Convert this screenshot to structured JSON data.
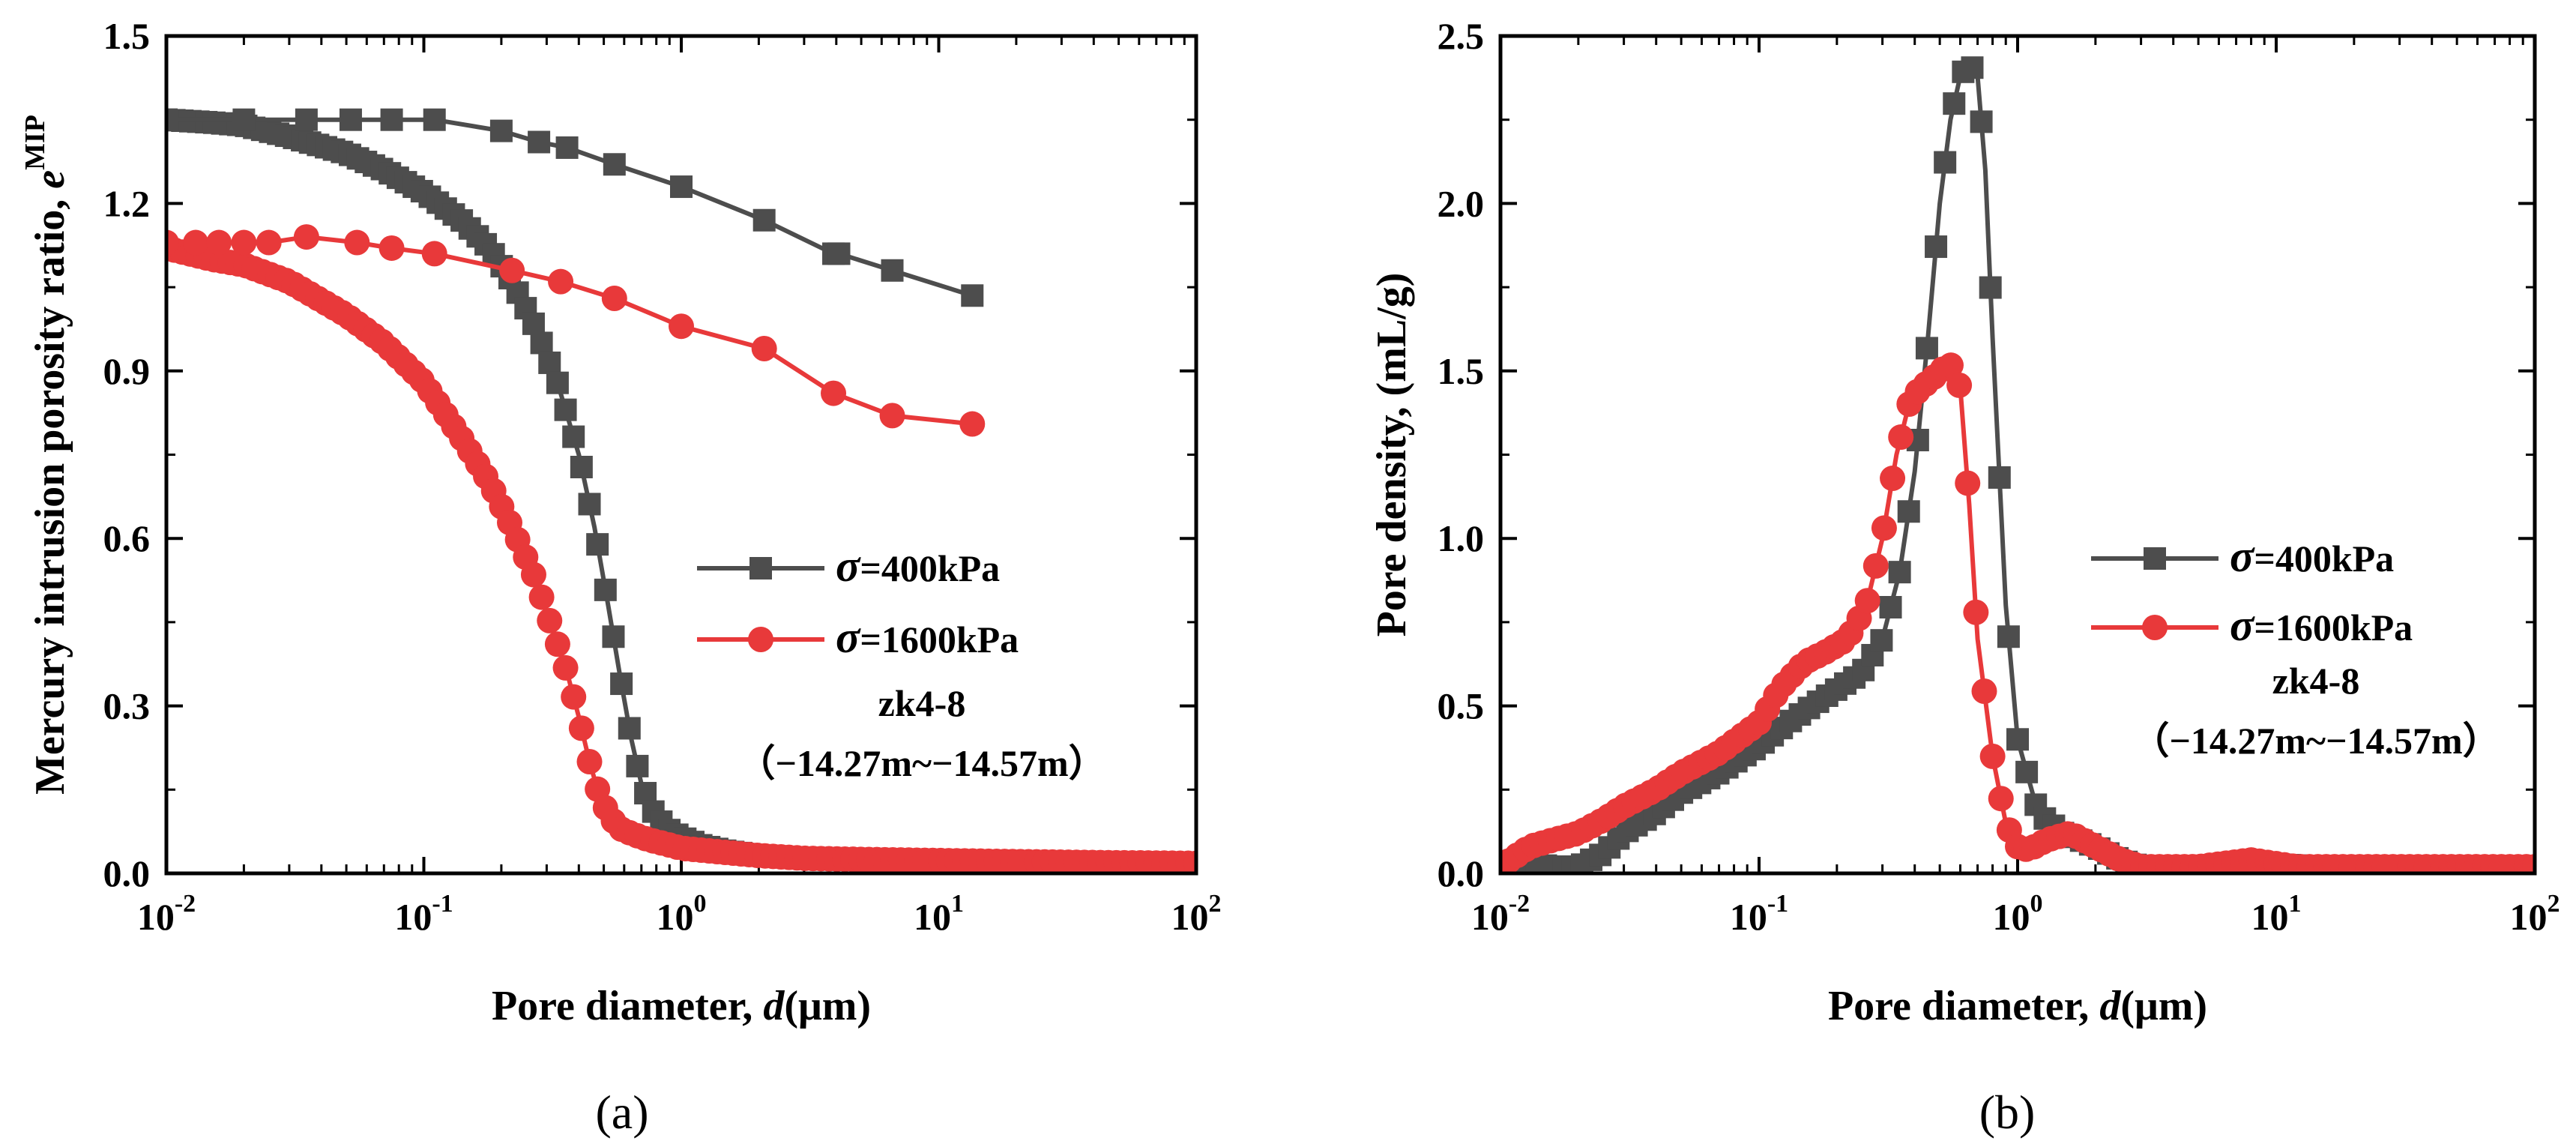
{
  "colors": {
    "s400": "#4d4d4d",
    "s1600": "#e8393a"
  },
  "chart_data": [
    {
      "id": "a",
      "type": "line",
      "panel_label": "(a)",
      "xscale": "log",
      "xlim": [
        0.01,
        100
      ],
      "ylim": [
        0,
        1.5
      ],
      "xticks": [
        {
          "v": 0.01,
          "b": "10",
          "e": "-2"
        },
        {
          "v": 0.1,
          "b": "10",
          "e": "-1"
        },
        {
          "v": 1,
          "b": "10",
          "e": "0"
        },
        {
          "v": 10,
          "b": "10",
          "e": "1"
        },
        {
          "v": 100,
          "b": "10",
          "e": "2"
        }
      ],
      "yticks": [
        {
          "v": 0,
          "t": "0.0"
        },
        {
          "v": 0.3,
          "t": "0.3"
        },
        {
          "v": 0.6,
          "t": "0.6"
        },
        {
          "v": 0.9,
          "t": "0.9"
        },
        {
          "v": 1.2,
          "t": "1.2"
        },
        {
          "v": 1.5,
          "t": "1.5"
        }
      ],
      "xlabel": {
        "pre": "Pore diameter, ",
        "sym": "d",
        "post": "(μm)"
      },
      "ylabel": {
        "pre": "Mercury intrusion porosity ratio, ",
        "sym": "e",
        "sup": "MIP"
      },
      "legend": [
        {
          "sym": "σ",
          "label": "=400kPa"
        },
        {
          "sym": "σ",
          "label": "=1600kPa"
        }
      ],
      "annotation": [
        "zk4-8",
        "（−14.27m~−14.57m）"
      ],
      "series": [
        {
          "name": "σ=400kPa",
          "marker": "square",
          "color_key": "s400",
          "x": [
            0.01,
            0.015,
            0.02,
            0.03,
            0.05,
            0.07,
            0.1,
            0.14,
            0.18,
            0.22,
            0.27,
            0.33,
            0.4,
            0.46,
            0.52,
            0.58,
            0.64,
            0.7,
            0.78,
            0.88,
            1.0,
            1.2,
            1.5,
            2.0,
            2.7,
            4.0,
            6.0,
            10,
            20,
            50,
            100
          ],
          "y": [
            1.35,
            1.345,
            1.34,
            1.32,
            1.29,
            1.26,
            1.22,
            1.17,
            1.12,
            1.06,
            0.98,
            0.88,
            0.75,
            0.62,
            0.48,
            0.35,
            0.24,
            0.16,
            0.11,
            0.08,
            0.065,
            0.05,
            0.04,
            0.032,
            0.028,
            0.025,
            0.024,
            0.022,
            0.02,
            0.018,
            0.016
          ],
          "n_markers": 130
        },
        {
          "name": "σ=1600kPa",
          "marker": "circle",
          "color_key": "s1600",
          "x": [
            0.01,
            0.015,
            0.02,
            0.03,
            0.05,
            0.07,
            0.1,
            0.14,
            0.18,
            0.22,
            0.27,
            0.32,
            0.36,
            0.4,
            0.44,
            0.48,
            0.53,
            0.58,
            0.65,
            0.75,
            0.88,
            1.0,
            1.3,
            2.0,
            3.0,
            5.0,
            10,
            20,
            50,
            100
          ],
          "y": [
            1.12,
            1.1,
            1.09,
            1.06,
            1.0,
            0.95,
            0.88,
            0.78,
            0.7,
            0.62,
            0.53,
            0.43,
            0.36,
            0.28,
            0.2,
            0.14,
            0.1,
            0.08,
            0.07,
            0.06,
            0.052,
            0.045,
            0.04,
            0.032,
            0.027,
            0.025,
            0.023,
            0.021,
            0.019,
            0.018
          ],
          "n_markers": 130
        },
        {
          "name": "σ=400kPa (upper)",
          "marker": "square",
          "color_key": "s400",
          "all_markers": true,
          "x": [
            0.01,
            0.02,
            0.035,
            0.052,
            0.075,
            0.11,
            0.2,
            0.28,
            0.36,
            0.55,
            1.0,
            2.1,
            3.9,
            4.1,
            6.6,
            13.5
          ],
          "y": [
            1.35,
            1.35,
            1.35,
            1.35,
            1.35,
            1.35,
            1.33,
            1.31,
            1.3,
            1.27,
            1.23,
            1.17,
            1.11,
            1.11,
            1.08,
            1.035
          ]
        },
        {
          "name": "σ=1600kPa (upper)",
          "marker": "circle",
          "color_key": "s1600",
          "all_markers": true,
          "x": [
            0.01,
            0.013,
            0.016,
            0.02,
            0.025,
            0.035,
            0.055,
            0.075,
            0.11,
            0.22,
            0.34,
            0.55,
            1.0,
            2.1,
            3.9,
            6.6,
            13.5
          ],
          "y": [
            1.13,
            1.13,
            1.13,
            1.13,
            1.13,
            1.14,
            1.13,
            1.12,
            1.11,
            1.08,
            1.06,
            1.03,
            0.98,
            0.94,
            0.86,
            0.82,
            0.805
          ]
        }
      ]
    },
    {
      "id": "b",
      "type": "line",
      "panel_label": "(b)",
      "xscale": "log",
      "xlim": [
        0.01,
        100
      ],
      "ylim": [
        0,
        2.5
      ],
      "xticks": [
        {
          "v": 0.01,
          "b": "10",
          "e": "-2"
        },
        {
          "v": 0.1,
          "b": "10",
          "e": "-1"
        },
        {
          "v": 1,
          "b": "10",
          "e": "0"
        },
        {
          "v": 10,
          "b": "10",
          "e": "1"
        },
        {
          "v": 100,
          "b": "10",
          "e": "2"
        }
      ],
      "yticks": [
        {
          "v": 0,
          "t": "0.0"
        },
        {
          "v": 0.5,
          "t": "0.5"
        },
        {
          "v": 1.0,
          "t": "1.0"
        },
        {
          "v": 1.5,
          "t": "1.5"
        },
        {
          "v": 2.0,
          "t": "2.0"
        },
        {
          "v": 2.5,
          "t": "2.5"
        }
      ],
      "xlabel": {
        "pre": "Pore diameter, ",
        "sym": "d",
        "post": "(μm)"
      },
      "ylabel": {
        "pre": "Pore density, (mL/g)"
      },
      "legend": [
        {
          "sym": "σ",
          "label": "=400kPa"
        },
        {
          "sym": "σ",
          "label": "=1600kPa"
        }
      ],
      "annotation": [
        "zk4-8",
        "（−14.27m~−14.57m）"
      ],
      "series": [
        {
          "name": "σ=400kPa",
          "marker": "square",
          "color_key": "s400",
          "x": [
            0.01,
            0.013,
            0.016,
            0.02,
            0.025,
            0.03,
            0.04,
            0.05,
            0.07,
            0.1,
            0.13,
            0.16,
            0.2,
            0.25,
            0.3,
            0.35,
            0.4,
            0.45,
            0.5,
            0.55,
            0.6,
            0.65,
            0.7,
            0.75,
            0.8,
            0.9,
            1.0,
            1.2,
            1.5,
            2.0,
            2.5,
            3.0,
            5.0,
            8.0,
            15,
            30,
            60,
            100
          ],
          "y": [
            0.02,
            0.03,
            0.02,
            0.02,
            0.06,
            0.12,
            0.18,
            0.24,
            0.3,
            0.38,
            0.45,
            0.5,
            0.55,
            0.6,
            0.7,
            0.9,
            1.2,
            1.6,
            2.0,
            2.25,
            2.38,
            2.42,
            2.38,
            2.1,
            1.6,
            0.8,
            0.4,
            0.18,
            0.12,
            0.08,
            0.04,
            0.02,
            0.02,
            0.03,
            0.02,
            0.02,
            0.02,
            0.02
          ],
          "n_markers": 115
        },
        {
          "name": "σ=1600kPa",
          "marker": "circle",
          "color_key": "s1600",
          "x": [
            0.01,
            0.013,
            0.016,
            0.02,
            0.025,
            0.03,
            0.04,
            0.05,
            0.07,
            0.1,
            0.12,
            0.15,
            0.18,
            0.22,
            0.26,
            0.3,
            0.34,
            0.38,
            0.42,
            0.46,
            0.5,
            0.55,
            0.6,
            0.65,
            0.7,
            0.8,
            0.9,
            1.0,
            1.1,
            1.3,
            1.6,
            2.0,
            2.5,
            3.0,
            5.0,
            8.0,
            12,
            30,
            100
          ],
          "y": [
            0.02,
            0.08,
            0.1,
            0.12,
            0.16,
            0.2,
            0.25,
            0.3,
            0.36,
            0.45,
            0.55,
            0.63,
            0.66,
            0.7,
            0.8,
            1.0,
            1.25,
            1.4,
            1.45,
            1.47,
            1.5,
            1.52,
            1.45,
            1.1,
            0.7,
            0.35,
            0.15,
            0.08,
            0.07,
            0.1,
            0.12,
            0.08,
            0.04,
            0.02,
            0.02,
            0.04,
            0.02,
            0.02,
            0.02
          ],
          "n_markers": 125
        }
      ]
    }
  ]
}
